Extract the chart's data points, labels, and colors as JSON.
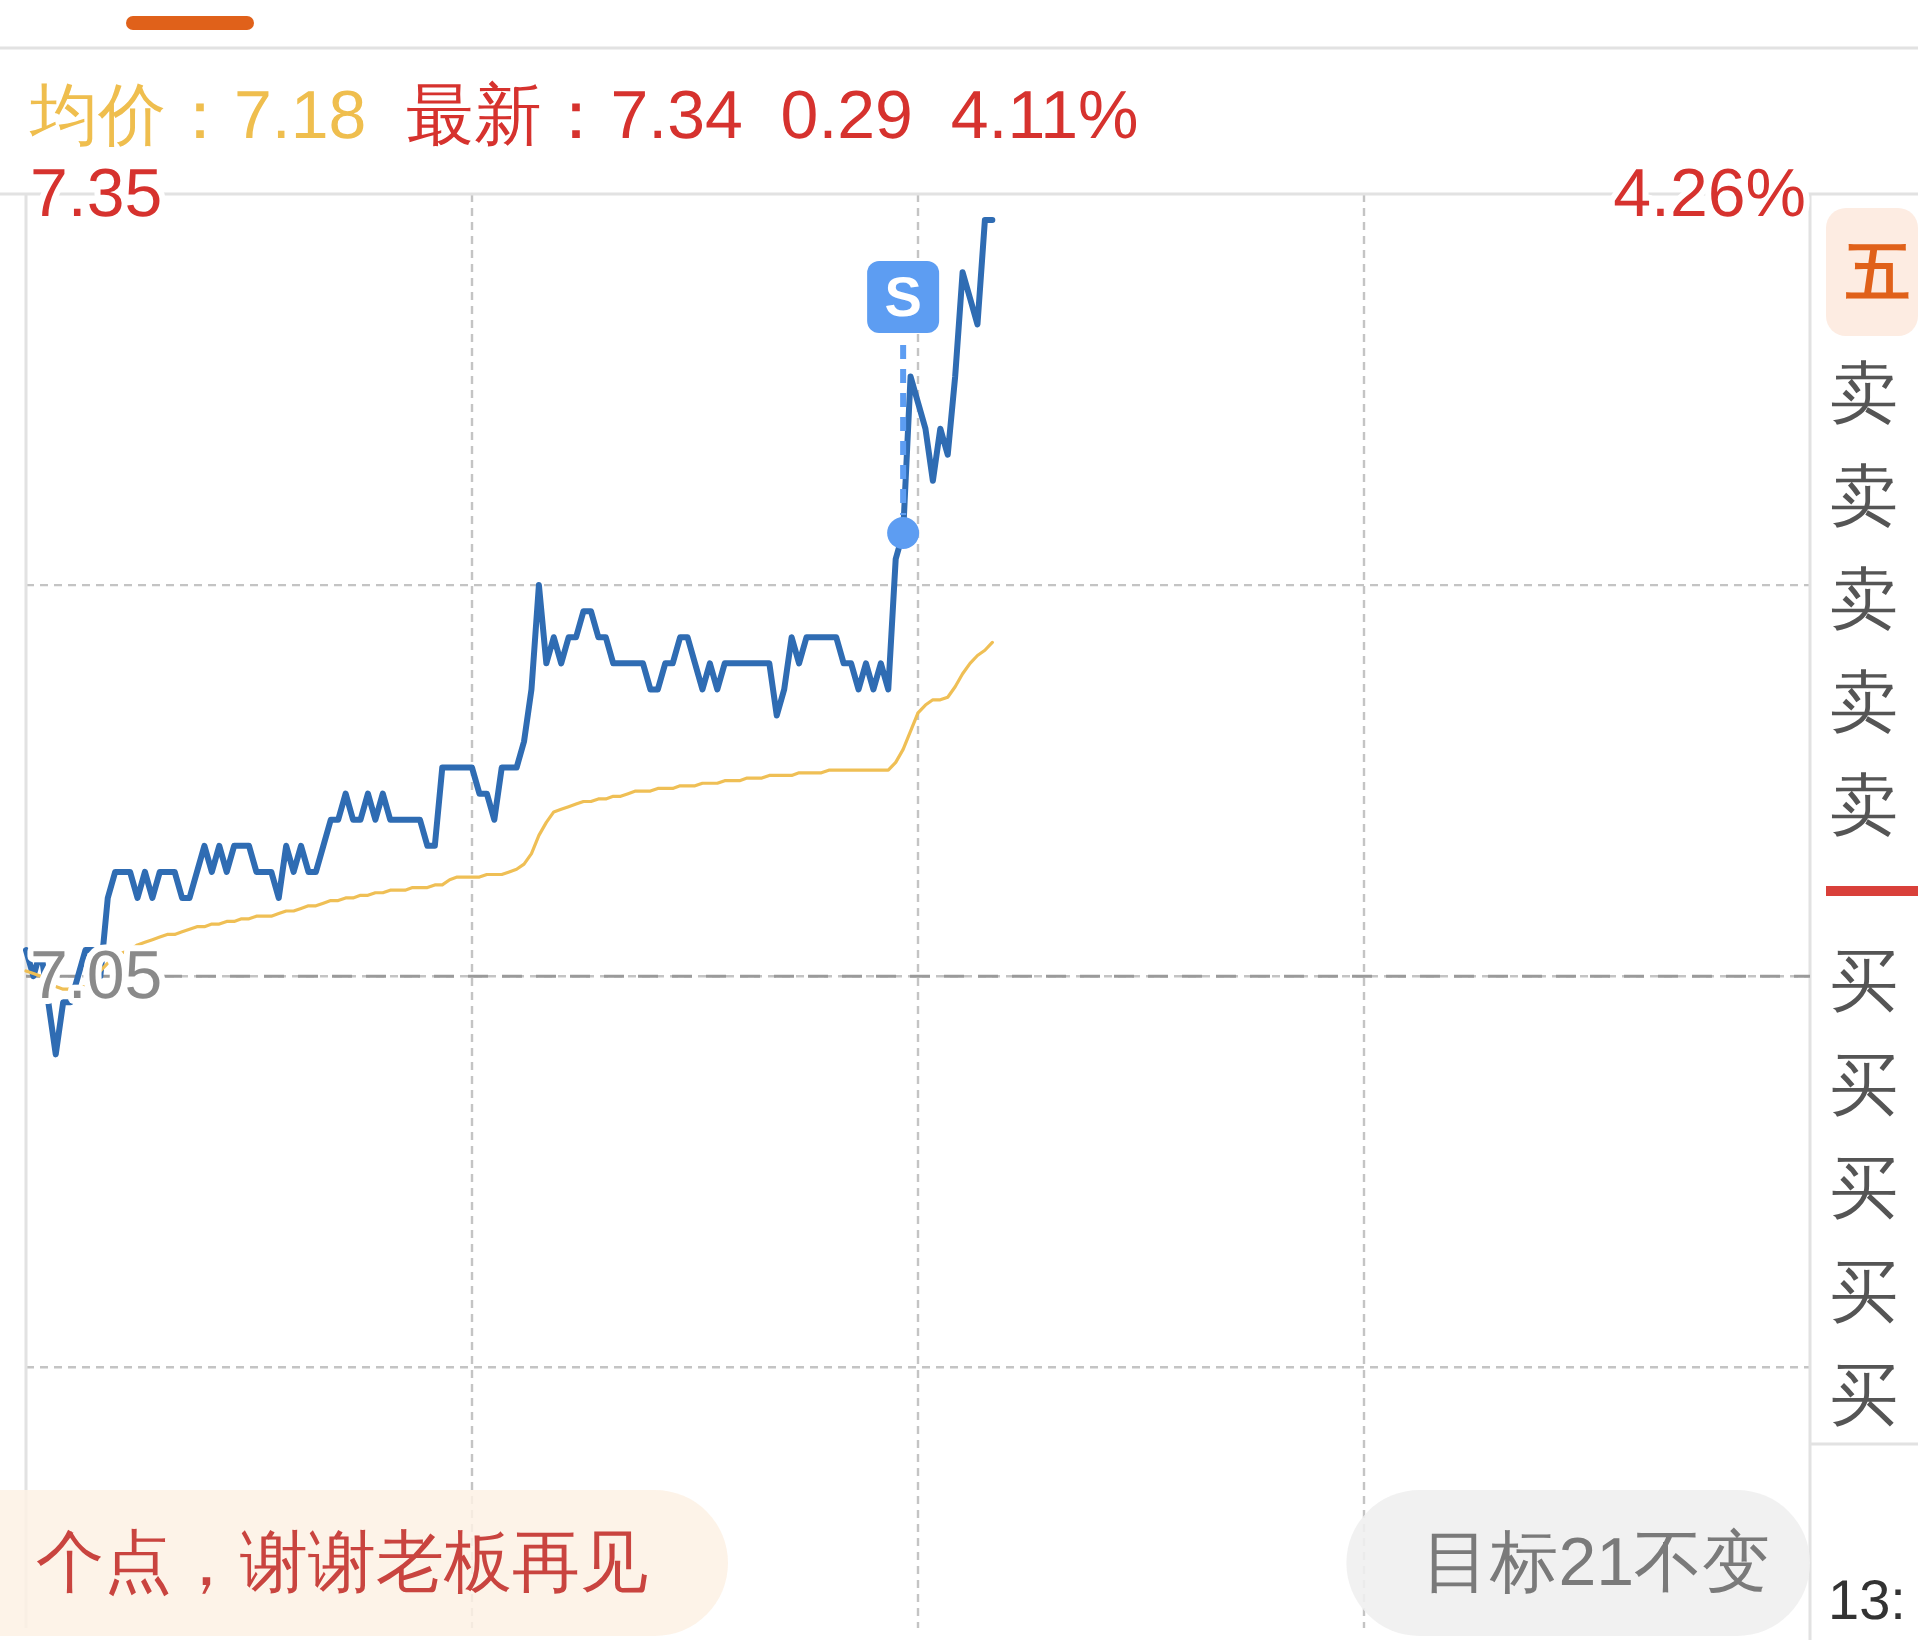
{
  "chart_data": [
    {
      "type": "line",
      "title": "均价：7.18",
      "subtitle": "最新：7.34  0.29  4.11%",
      "categories": [
        null,
        null,
        null,
        null,
        null,
        null,
        null,
        null,
        null,
        null,
        null,
        null,
        null,
        null,
        null,
        null,
        null,
        null,
        null,
        null,
        null,
        null,
        null,
        null,
        null,
        null,
        null,
        null,
        null,
        null,
        null,
        null,
        null,
        null,
        null,
        null,
        null,
        null,
        null,
        null,
        null,
        null,
        null,
        null,
        null,
        null,
        null,
        null,
        null,
        null,
        null,
        null,
        null,
        null,
        null,
        null,
        null,
        null,
        null,
        null,
        null,
        null,
        null,
        null,
        null,
        null,
        null,
        null,
        null,
        null,
        null,
        null,
        null,
        null,
        null,
        null,
        null,
        null,
        null,
        null,
        null,
        null,
        null,
        null,
        null,
        null,
        null,
        null,
        null,
        null,
        null,
        null,
        null,
        null,
        null,
        null,
        null,
        null,
        null,
        null,
        null,
        null,
        null,
        null,
        null,
        null,
        null,
        null,
        null,
        null,
        null,
        null,
        null,
        null,
        null,
        null,
        null,
        null,
        null,
        null,
        null,
        null,
        null,
        null,
        null,
        null,
        null,
        null,
        null,
        null,
        null,
        null,
        null,
        null,
        null,
        null,
        null,
        null,
        null,
        null,
        null,
        null,
        null,
        null,
        null,
        null,
        null,
        null,
        null,
        null,
        null,
        null,
        null,
        null,
        null,
        null,
        null,
        null,
        null,
        null,
        null,
        null,
        null,
        null,
        null,
        null,
        null,
        null,
        null,
        null,
        null,
        null,
        null,
        null,
        null,
        null,
        null,
        null,
        null,
        null,
        null,
        null,
        null,
        null,
        null,
        null,
        null,
        null,
        null,
        null,
        null,
        null,
        null,
        null,
        null,
        null,
        null,
        null,
        null,
        null,
        null,
        null,
        null,
        null,
        null,
        null,
        null,
        null,
        null,
        null,
        null,
        null,
        null,
        null,
        null,
        null,
        null,
        null,
        null,
        null,
        null,
        null,
        null,
        null,
        null,
        null,
        null,
        null,
        null,
        null,
        null,
        null,
        null,
        null,
        null,
        null,
        null,
        null,
        null,
        null,
        null
      ],
      "series": [
        {
          "color": "#2f6cb3",
          "values": [
            7.06,
            7.05,
            7.06,
            7.04,
            7.02,
            7.04,
            7.04,
            7.05,
            7.06,
            7.06,
            7.05,
            7.08,
            7.09,
            7.09,
            7.09,
            7.08,
            7.09,
            7.08,
            7.09,
            7.09,
            7.09,
            7.08,
            7.08,
            7.09,
            7.1,
            7.09,
            7.1,
            7.09,
            7.1,
            7.1,
            7.1,
            7.09,
            7.09,
            7.09,
            7.08,
            7.1,
            7.09,
            7.1,
            7.09,
            7.09,
            7.1,
            7.11,
            7.11,
            7.12,
            7.11,
            7.11,
            7.12,
            7.11,
            7.12,
            7.11,
            7.11,
            7.11,
            7.11,
            7.11,
            7.1,
            7.1,
            7.13,
            7.13,
            7.13,
            7.13,
            7.13,
            7.12,
            7.12,
            7.11,
            7.13,
            7.13,
            7.13,
            7.14,
            7.16,
            7.2,
            7.17,
            7.18,
            7.17,
            7.18,
            7.18,
            7.19,
            7.19,
            7.18,
            7.18,
            7.17,
            7.17,
            7.17,
            7.17,
            7.17,
            7.16,
            7.16,
            7.17,
            7.17,
            7.18,
            7.18,
            7.17,
            7.16,
            7.17,
            7.16,
            7.17,
            7.17,
            7.17,
            7.17,
            7.17,
            7.17,
            7.17,
            7.15,
            7.16,
            7.18,
            7.17,
            7.18,
            7.18,
            7.18,
            7.18,
            7.18,
            7.17,
            7.17,
            7.16,
            7.17,
            7.16,
            7.17,
            7.16,
            7.21,
            7.22,
            7.28,
            7.27,
            7.26,
            7.24,
            7.26,
            7.25,
            7.28,
            7.32,
            7.31,
            7.3,
            7.34,
            7.34,
            null,
            null,
            null,
            null,
            null,
            null,
            null,
            null,
            null,
            null,
            null,
            null,
            null,
            null,
            null,
            null,
            null,
            null,
            null,
            null,
            null,
            null,
            null,
            null,
            null,
            null,
            null,
            null,
            null,
            null,
            null,
            null,
            null,
            null,
            null,
            null,
            null,
            null,
            null,
            null,
            null,
            null,
            null,
            null,
            null,
            null,
            null,
            null,
            null,
            null,
            null,
            null,
            null,
            null,
            null,
            null,
            null,
            null,
            null,
            null,
            null,
            null,
            null,
            null,
            null,
            null,
            null,
            null,
            null,
            null,
            null,
            null,
            null,
            null,
            null,
            null,
            null,
            null,
            null,
            null,
            null,
            null,
            null,
            null,
            null,
            null,
            null,
            null,
            null,
            null,
            null,
            null,
            null,
            null,
            null,
            null,
            null,
            null,
            null,
            null,
            null,
            null,
            null,
            null,
            null,
            null,
            null,
            null,
            null,
            null
          ]
        },
        {
          "color": "#efbf55",
          "values": [
            7.052,
            7.051,
            7.05,
            7.047,
            7.046,
            7.045,
            7.045,
            7.046,
            7.046,
            7.049,
            7.052,
            7.055,
            7.058,
            7.059,
            7.06,
            7.062,
            7.063,
            7.064,
            7.065,
            7.066,
            7.066,
            7.067,
            7.068,
            7.069,
            7.069,
            7.07,
            7.07,
            7.071,
            7.071,
            7.072,
            7.072,
            7.073,
            7.073,
            7.073,
            7.074,
            7.075,
            7.075,
            7.076,
            7.077,
            7.077,
            7.078,
            7.079,
            7.079,
            7.08,
            7.08,
            7.081,
            7.081,
            7.082,
            7.082,
            7.083,
            7.083,
            7.083,
            7.084,
            7.084,
            7.084,
            7.085,
            7.085,
            7.087,
            7.088,
            7.088,
            7.088,
            7.088,
            7.089,
            7.089,
            7.089,
            7.09,
            7.091,
            7.093,
            7.097,
            7.104,
            7.109,
            7.113,
            7.114,
            7.115,
            7.116,
            7.117,
            7.117,
            7.118,
            7.118,
            7.119,
            7.119,
            7.12,
            7.121,
            7.121,
            7.121,
            7.122,
            7.122,
            7.122,
            7.123,
            7.123,
            7.123,
            7.124,
            7.124,
            7.124,
            7.125,
            7.125,
            7.125,
            7.126,
            7.126,
            7.126,
            7.127,
            7.127,
            7.127,
            7.127,
            7.128,
            7.128,
            7.128,
            7.128,
            7.129,
            7.129,
            7.129,
            7.129,
            7.129,
            7.129,
            7.129,
            7.129,
            7.129,
            7.132,
            7.137,
            7.144,
            7.151,
            7.154,
            7.156,
            7.156,
            7.157,
            7.161,
            7.166,
            7.17,
            7.173,
            7.175,
            7.178,
            null,
            null,
            null,
            null,
            null,
            null,
            null,
            null,
            null,
            null,
            null,
            null,
            null,
            null,
            null,
            null,
            null,
            null,
            null,
            null,
            null,
            null,
            null,
            null,
            null,
            null,
            null,
            null,
            null,
            null,
            null,
            null,
            null,
            null,
            null,
            null,
            null,
            null,
            null,
            null,
            null,
            null,
            null,
            null,
            null,
            null,
            null,
            null,
            null,
            null,
            null,
            null,
            null,
            null,
            null,
            null,
            null,
            null,
            null,
            null,
            null,
            null,
            null,
            null,
            null,
            null,
            null,
            null,
            null,
            null,
            null,
            null,
            null,
            null,
            null,
            null,
            null,
            null,
            null,
            null,
            null,
            null,
            null,
            null,
            null,
            null,
            null,
            null,
            null,
            null,
            null,
            null,
            null,
            null,
            null,
            null,
            null,
            null,
            null,
            null,
            null,
            null,
            null,
            null,
            null,
            null,
            null,
            null,
            null,
            null
          ]
        },
        {
          "type": "scatter",
          "marker": "circle",
          "color": "#5d9df2",
          "values": [
            null,
            null,
            null,
            null,
            null,
            null,
            null,
            null,
            null,
            null,
            null,
            null,
            null,
            null,
            null,
            null,
            null,
            null,
            null,
            null,
            null,
            null,
            null,
            null,
            null,
            null,
            null,
            null,
            null,
            null,
            null,
            null,
            null,
            null,
            null,
            null,
            null,
            null,
            null,
            null,
            null,
            null,
            null,
            null,
            null,
            null,
            null,
            null,
            null,
            null,
            null,
            null,
            null,
            null,
            null,
            null,
            null,
            null,
            null,
            null,
            null,
            null,
            null,
            null,
            null,
            null,
            null,
            null,
            null,
            null,
            null,
            null,
            null,
            null,
            null,
            null,
            null,
            null,
            null,
            null,
            null,
            null,
            null,
            null,
            null,
            null,
            null,
            null,
            null,
            null,
            null,
            null,
            null,
            null,
            null,
            null,
            null,
            null,
            null,
            null,
            null,
            null,
            null,
            null,
            null,
            null,
            null,
            null,
            null,
            null,
            null,
            null,
            null,
            null,
            null,
            null,
            null,
            null,
            7.22,
            null,
            null,
            null,
            null,
            null,
            null,
            null,
            null,
            null,
            null,
            null,
            null,
            null,
            null,
            null,
            null,
            null,
            null,
            null,
            null,
            null,
            null,
            null,
            null,
            null,
            null,
            null,
            null,
            null,
            null,
            null,
            null,
            null,
            null,
            null,
            null,
            null,
            null,
            null,
            null,
            null,
            null,
            null,
            null,
            null,
            null,
            null,
            null,
            null,
            null,
            null,
            null,
            null,
            null,
            null,
            null,
            null,
            null,
            null,
            null,
            null,
            null,
            null,
            null,
            null,
            null,
            null,
            null,
            null,
            null,
            null,
            null,
            null,
            null,
            null,
            null,
            null,
            null,
            null,
            null,
            null,
            null,
            null,
            null,
            null,
            null,
            null,
            null,
            null,
            null,
            null,
            null,
            null,
            null,
            null,
            null,
            null,
            null,
            null,
            null,
            null,
            null,
            null,
            null,
            null,
            null,
            null,
            null,
            null,
            null,
            null,
            null,
            null,
            null,
            null,
            null,
            null,
            null,
            null,
            null,
            null,
            null
          ]
        }
      ],
      "ylim": [
        6.8,
        7.35
      ],
      "yticks": [
        7.35,
        {
          "value": 7.2,
          "label": null
        },
        7.05,
        {
          "value": 6.9,
          "label": null
        }
      ],
      "grid": true,
      "ref_lines": [
        {
          "axis": "y",
          "value": 7.05,
          "color": "#9a9a9a",
          "line_style": "dashed"
        }
      ],
      "annotations": [
        "4.26%",
        "S",
        "个点，谢谢老板再见",
        "目标21不变"
      ]
    },
    {
      "type": "other",
      "annotations": [
        "五",
        "卖",
        "卖",
        "卖",
        "卖",
        "卖",
        "买",
        "买",
        "买",
        "买",
        "买",
        "13:"
      ]
    }
  ]
}
